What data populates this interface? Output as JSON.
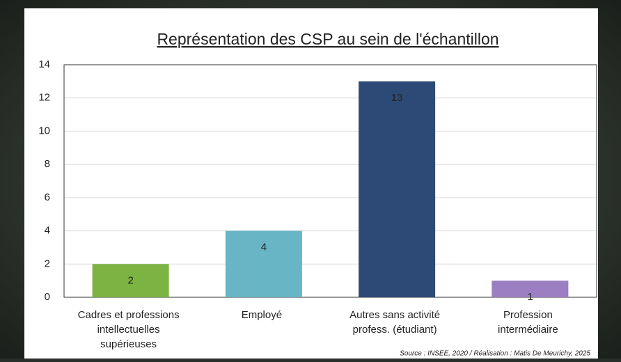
{
  "chart_data": {
    "type": "bar",
    "title": "Représentation des CSP au sein de l'échantillon",
    "categories": [
      [
        "Cadres et professions",
        "intellectuelles",
        "supérieuses"
      ],
      [
        "Employé"
      ],
      [
        "Autres sans activité",
        "profess. (étudiant)"
      ],
      [
        "Profession",
        "intermédiaire"
      ]
    ],
    "values": [
      2,
      4,
      13,
      1
    ],
    "colors": [
      "#7cb342",
      "#67b5c5",
      "#2c4a75",
      "#9b7fc2"
    ],
    "ylim": [
      0,
      14
    ],
    "yticks": [
      0,
      2,
      4,
      6,
      8,
      10,
      12,
      14
    ],
    "grid": true,
    "source": "Source : INSEE, 2020 / Réalisation : Matis De Meurichy, 2025"
  }
}
